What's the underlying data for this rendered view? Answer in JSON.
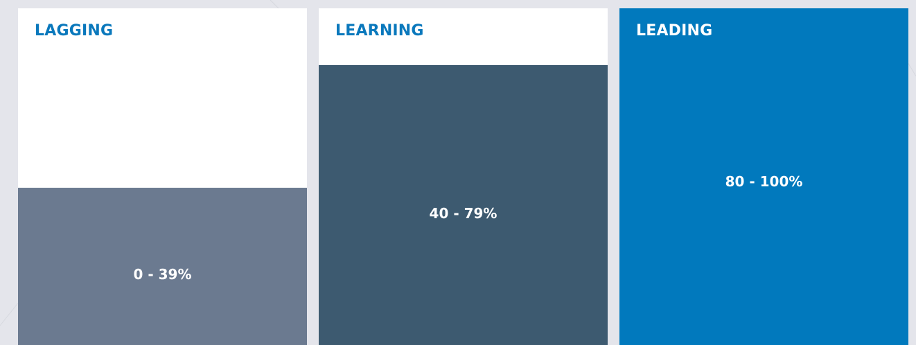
{
  "cards": [
    {
      "title": "LAGGING",
      "range": "0 - 39%"
    },
    {
      "title": "LEARNING",
      "range": "40 - 79%"
    },
    {
      "title": "LEADING",
      "range": "80 - 100%"
    }
  ]
}
